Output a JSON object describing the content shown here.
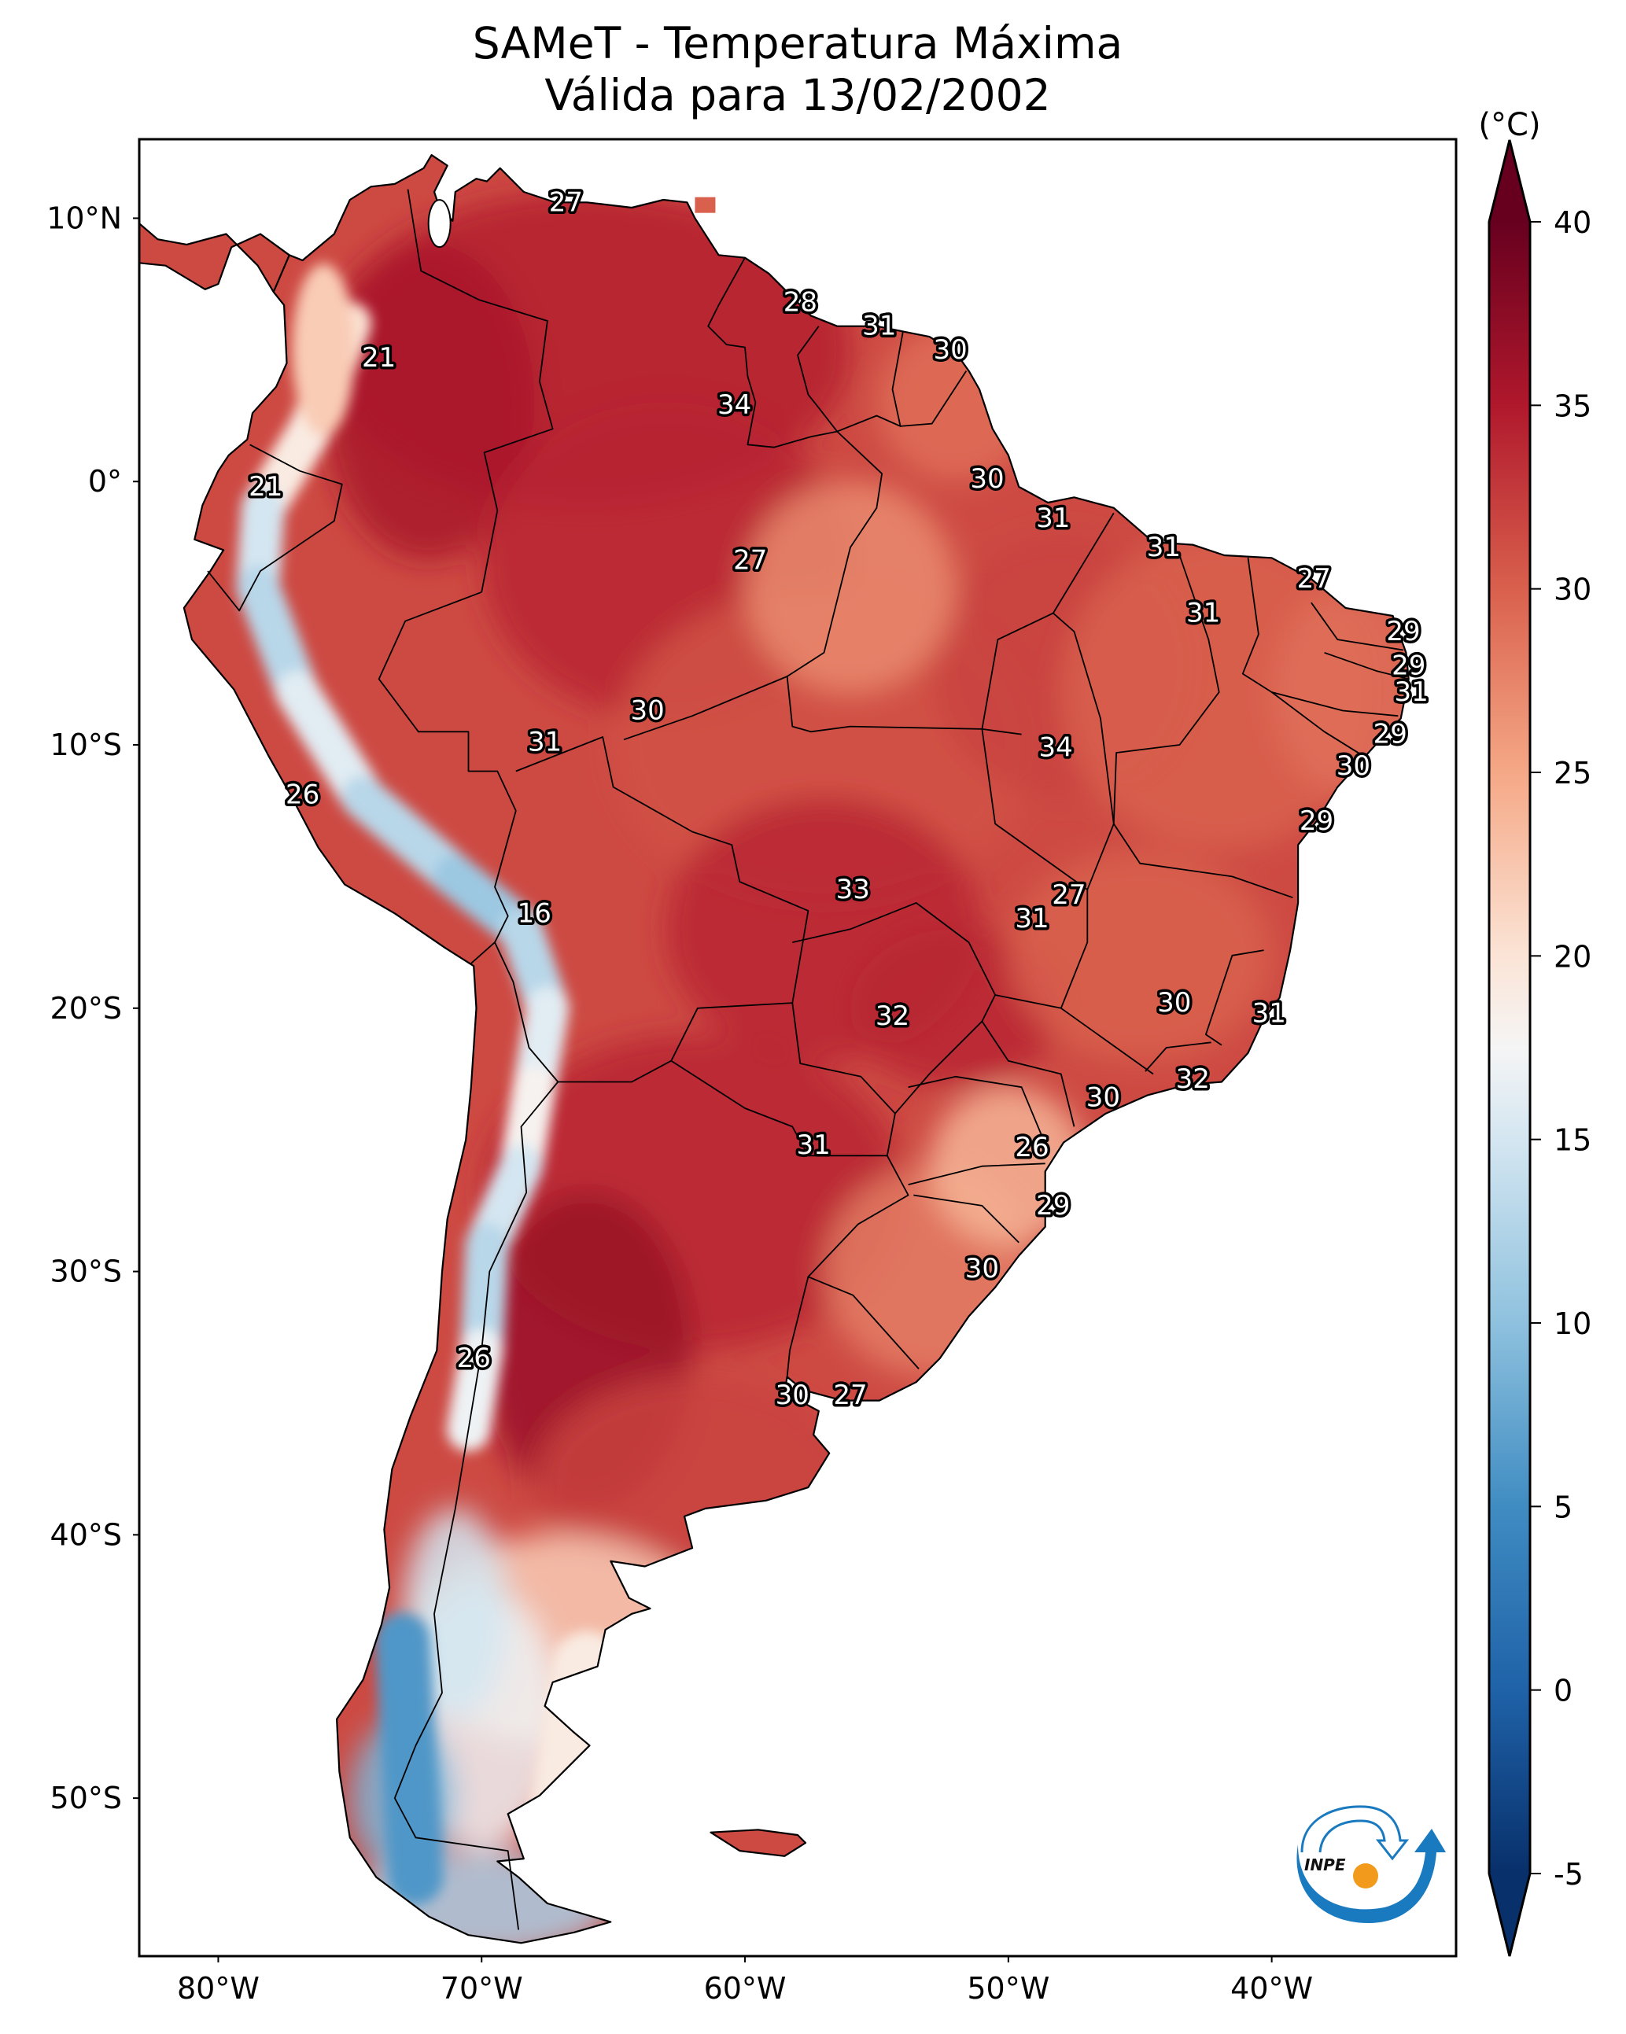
{
  "title": {
    "line1": "SAMeT - Temperatura Máxima",
    "line2": "Válida para 13/02/2002"
  },
  "colors": {
    "background": "#ffffff",
    "frame": "#000000",
    "label_fill": "#ffffff",
    "label_stroke": "#000000",
    "logo_blue": "#1a7ac0",
    "logo_orange": "#f29a1c"
  },
  "logo": {
    "text": "INPE"
  },
  "chart_data": {
    "type": "heatmap",
    "title": "SAMeT - Temperatura Máxima — Válida para 13/02/2002",
    "variable": "Maximum temperature",
    "units": "(°C)",
    "colormap": "RdBu_r",
    "projection": "PlateCarree",
    "extent": {
      "lon": [
        -83,
        -33
      ],
      "lat": [
        -56,
        13
      ]
    },
    "xticks": [
      {
        "lon": -80,
        "label": "80°W"
      },
      {
        "lon": -70,
        "label": "70°W"
      },
      {
        "lon": -60,
        "label": "60°W"
      },
      {
        "lon": -50,
        "label": "50°W"
      },
      {
        "lon": -40,
        "label": "40°W"
      }
    ],
    "yticks": [
      {
        "lat": 10,
        "label": "10°N"
      },
      {
        "lat": 0,
        "label": "0°"
      },
      {
        "lat": -10,
        "label": "10°S"
      },
      {
        "lat": -20,
        "label": "20°S"
      },
      {
        "lat": -30,
        "label": "30°S"
      },
      {
        "lat": -40,
        "label": "40°S"
      },
      {
        "lat": -50,
        "label": "50°S"
      }
    ],
    "colorbar": {
      "label": "(°C)",
      "range": [
        -5,
        40
      ],
      "extend": "both",
      "ticks": [
        40,
        35,
        30,
        25,
        20,
        15,
        10,
        5,
        0,
        -5
      ],
      "tick_labels": [
        "40",
        "35",
        "30",
        "25",
        "20",
        "15",
        "10",
        "5",
        "0",
        "-5"
      ],
      "stops": [
        {
          "v": -5,
          "c": "#08306b"
        },
        {
          "v": 0,
          "c": "#1f62a8"
        },
        {
          "v": 5,
          "c": "#3f8cc2"
        },
        {
          "v": 10,
          "c": "#8ec1de"
        },
        {
          "v": 15,
          "c": "#d4e6f1"
        },
        {
          "v": 17.5,
          "c": "#f5f5f5"
        },
        {
          "v": 20,
          "c": "#fbe4d6"
        },
        {
          "v": 25,
          "c": "#f5a886"
        },
        {
          "v": 30,
          "c": "#d9604d"
        },
        {
          "v": 35,
          "c": "#b0182c"
        },
        {
          "v": 40,
          "c": "#67001f"
        }
      ]
    },
    "point_labels": [
      {
        "lon": -66.8,
        "lat": 10.6,
        "value": 27
      },
      {
        "lon": -73.9,
        "lat": 4.7,
        "value": 21
      },
      {
        "lon": -57.9,
        "lat": 6.8,
        "value": 28
      },
      {
        "lon": -54.9,
        "lat": 5.9,
        "value": 31
      },
      {
        "lon": -52.2,
        "lat": 5.0,
        "value": 30
      },
      {
        "lon": -60.4,
        "lat": 2.9,
        "value": 34
      },
      {
        "lon": -78.2,
        "lat": -0.2,
        "value": 21
      },
      {
        "lon": -50.8,
        "lat": 0.1,
        "value": 30
      },
      {
        "lon": -48.3,
        "lat": -1.4,
        "value": 31
      },
      {
        "lon": -59.8,
        "lat": -3.0,
        "value": 27
      },
      {
        "lon": -44.1,
        "lat": -2.5,
        "value": 31
      },
      {
        "lon": -38.4,
        "lat": -3.7,
        "value": 27
      },
      {
        "lon": -42.6,
        "lat": -5.0,
        "value": 31
      },
      {
        "lon": -35.0,
        "lat": -5.7,
        "value": 29
      },
      {
        "lon": -34.8,
        "lat": -7.0,
        "value": 29
      },
      {
        "lon": -34.7,
        "lat": -8.0,
        "value": 31
      },
      {
        "lon": -63.7,
        "lat": -8.7,
        "value": 30
      },
      {
        "lon": -67.6,
        "lat": -9.9,
        "value": 31
      },
      {
        "lon": -48.2,
        "lat": -10.1,
        "value": 34
      },
      {
        "lon": -35.5,
        "lat": -9.6,
        "value": 29
      },
      {
        "lon": -36.9,
        "lat": -10.8,
        "value": 30
      },
      {
        "lon": -76.8,
        "lat": -11.9,
        "value": 26
      },
      {
        "lon": -38.3,
        "lat": -12.9,
        "value": 29
      },
      {
        "lon": -55.9,
        "lat": -15.5,
        "value": 33
      },
      {
        "lon": -47.7,
        "lat": -15.7,
        "value": 27
      },
      {
        "lon": -68.0,
        "lat": -16.4,
        "value": 16
      },
      {
        "lon": -49.1,
        "lat": -16.6,
        "value": 31
      },
      {
        "lon": -43.7,
        "lat": -19.8,
        "value": 30
      },
      {
        "lon": -54.4,
        "lat": -20.3,
        "value": 32
      },
      {
        "lon": -40.1,
        "lat": -20.2,
        "value": 31
      },
      {
        "lon": -43.0,
        "lat": -22.7,
        "value": 32
      },
      {
        "lon": -46.4,
        "lat": -23.4,
        "value": 30
      },
      {
        "lon": -49.1,
        "lat": -25.3,
        "value": 26
      },
      {
        "lon": -57.4,
        "lat": -25.2,
        "value": 31
      },
      {
        "lon": -48.3,
        "lat": -27.5,
        "value": 29
      },
      {
        "lon": -51.0,
        "lat": -29.9,
        "value": 30
      },
      {
        "lon": -70.3,
        "lat": -33.3,
        "value": 26
      },
      {
        "lon": -58.2,
        "lat": -34.7,
        "value": 30
      },
      {
        "lon": -56.0,
        "lat": -34.7,
        "value": 27
      }
    ],
    "field_regions": [
      {
        "name": "amazon-hot",
        "value": 33.5
      },
      {
        "name": "andes-cool",
        "value": 14
      },
      {
        "name": "patagonia-cool",
        "value": 17
      },
      {
        "name": "southern-andes-cold",
        "value": 9
      },
      {
        "name": "argentina-hot",
        "value": 35
      },
      {
        "name": "northeast-warm",
        "value": 30
      },
      {
        "name": "south-brazil-mild",
        "value": 25
      }
    ]
  }
}
